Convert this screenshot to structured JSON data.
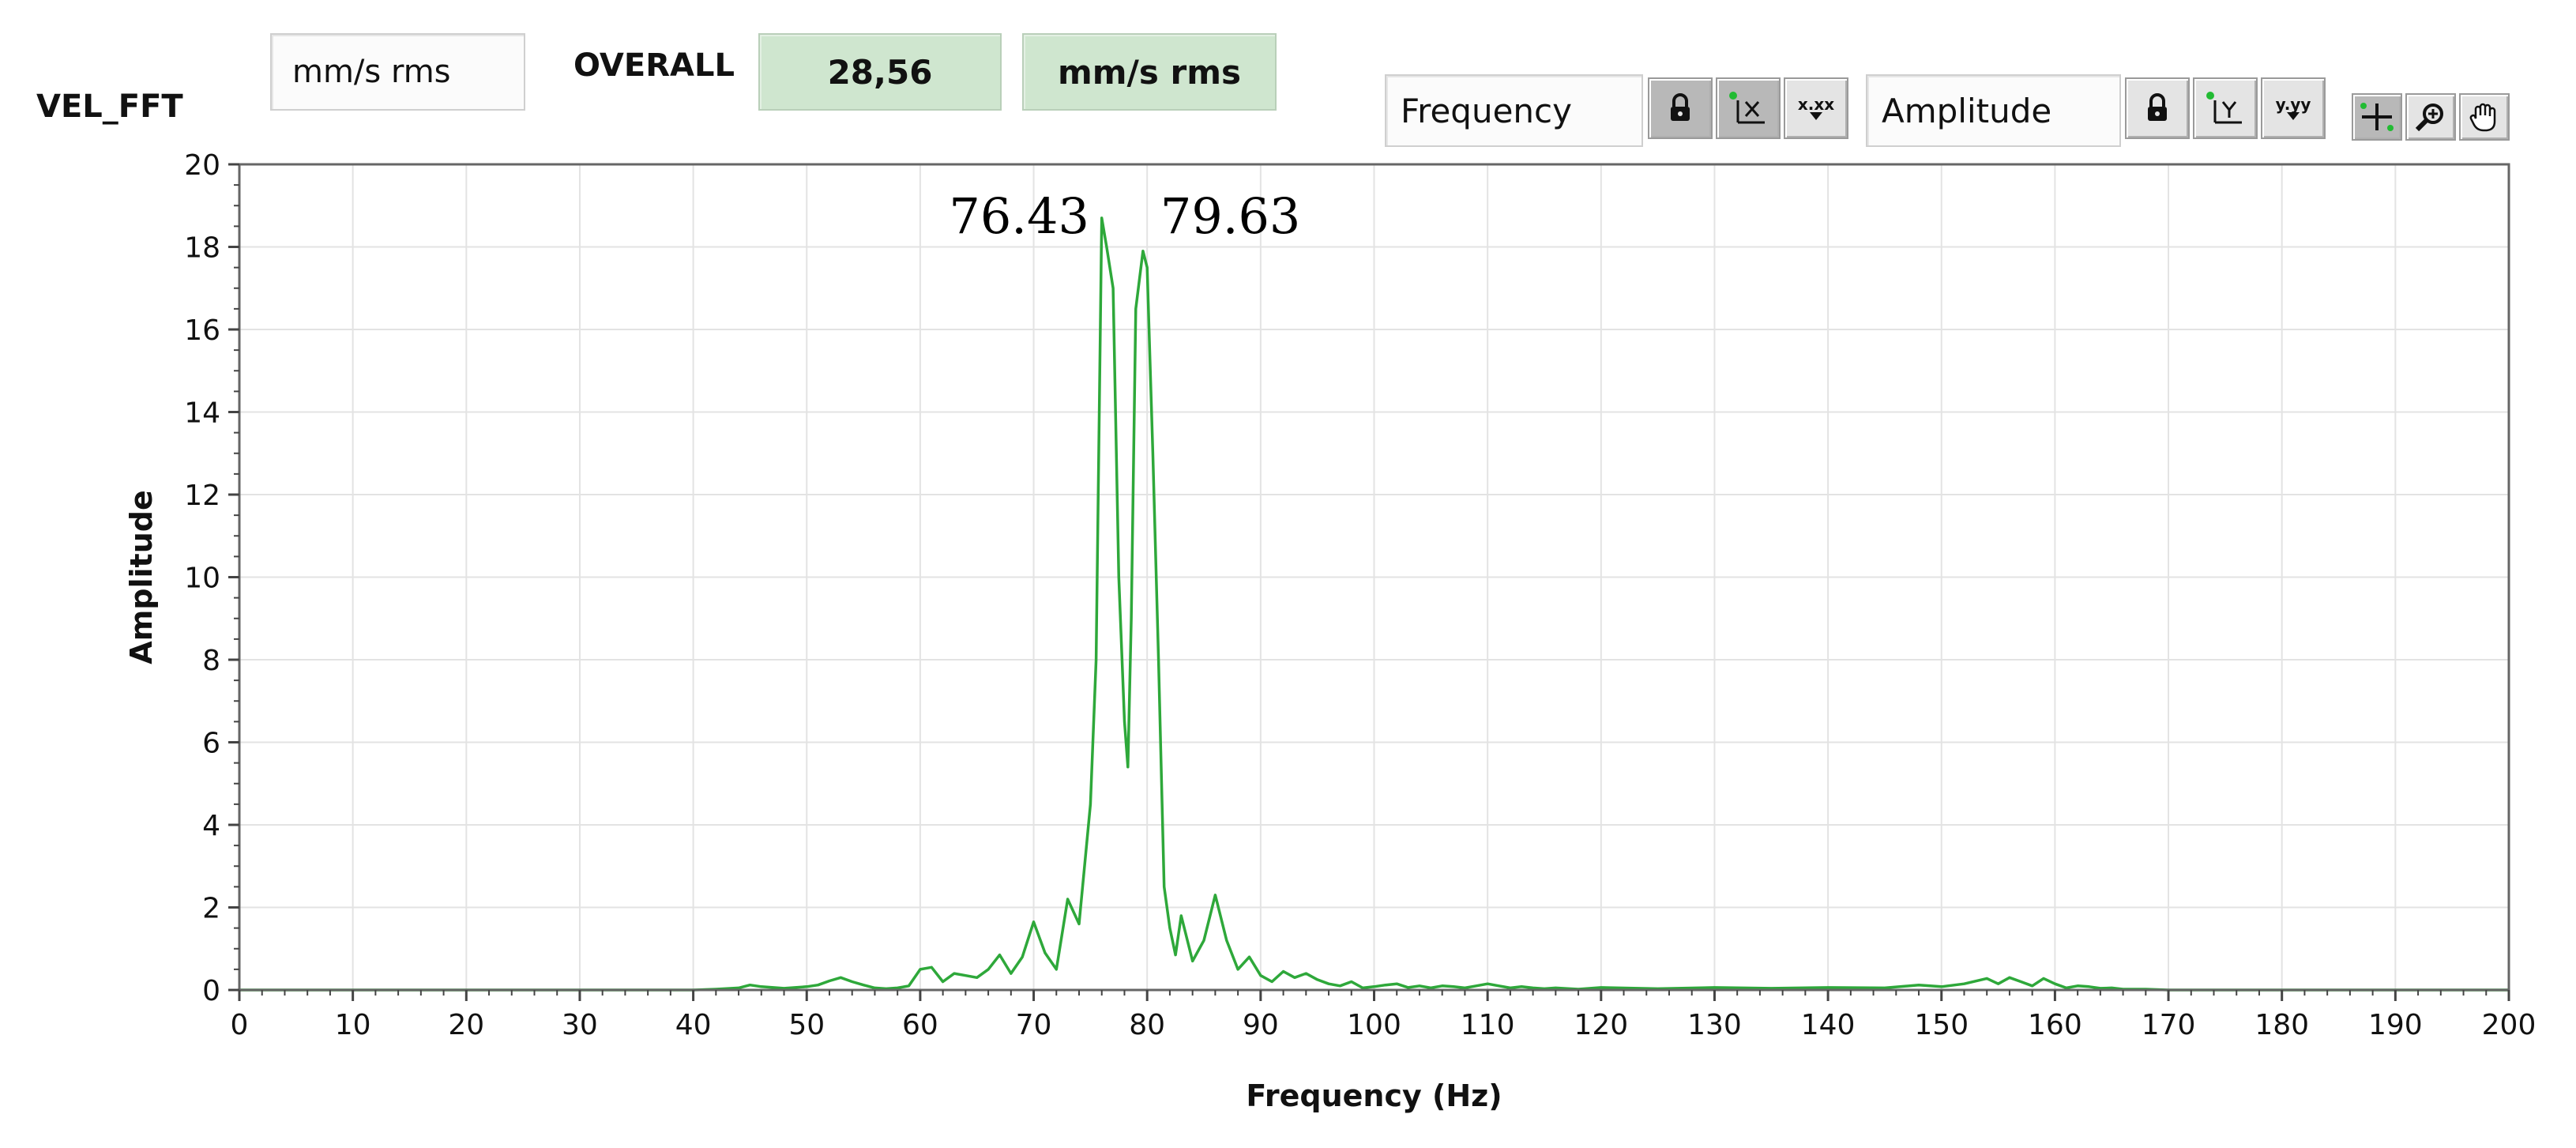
{
  "panel": {
    "graph_label": "VEL_FFT",
    "unit_display": "mm/s rms",
    "overall_label": "OVERALL",
    "overall_value": "28,56",
    "overall_unit": "mm/s rms"
  },
  "scale_legend": {
    "x_name": "Frequency",
    "y_name": "Amplitude",
    "x_format_glyph": "x.xx",
    "y_format_glyph": "y.yy"
  },
  "palette": {
    "trace_color": "#2ea83a",
    "grid_color": "#e3e3e3",
    "indicator_green": "#cfe6cf"
  },
  "icons": {
    "x_lock": "lock-icon",
    "y_lock": "lock-icon",
    "x_autoscale": "autoscale-x-icon",
    "y_autoscale": "autoscale-y-icon",
    "cursor_tool": "crosshair-icon",
    "zoom_tool": "zoom-icon",
    "pan_tool": "hand-icon"
  },
  "chart_data": {
    "type": "line",
    "title": "",
    "xlabel": "Frequency (Hz)",
    "ylabel": "Amplitude",
    "xlim": [
      0,
      200
    ],
    "ylim": [
      0,
      20
    ],
    "xticks": [
      0,
      10,
      20,
      30,
      40,
      50,
      60,
      70,
      80,
      90,
      100,
      110,
      120,
      130,
      140,
      150,
      160,
      170,
      180,
      190,
      200
    ],
    "yticks": [
      0,
      2,
      4,
      6,
      8,
      10,
      12,
      14,
      16,
      18,
      20
    ],
    "grid": true,
    "legend": "none",
    "annotations": [
      {
        "text": "76.43",
        "x": 76.43,
        "y": 18.6,
        "side": "left"
      },
      {
        "text": "79.63",
        "x": 79.63,
        "y": 18.6,
        "side": "right"
      }
    ],
    "series": [
      {
        "x": [
          0,
          5,
          10,
          20,
          30,
          40,
          42,
          44,
          45,
          46,
          48,
          50,
          51,
          52,
          53,
          54,
          55,
          56,
          57,
          58,
          59,
          60,
          61,
          62,
          63,
          64,
          65,
          66,
          67,
          68,
          69,
          70,
          71,
          72,
          73,
          74,
          75,
          75.5,
          76,
          76.43,
          77,
          77.5,
          78,
          78.3,
          78.6,
          79,
          79.63,
          80,
          80.5,
          81,
          81.5,
          82,
          82.5,
          83,
          84,
          85,
          86,
          87,
          88,
          89,
          90,
          91,
          92,
          93,
          94,
          95,
          96,
          97,
          98,
          99,
          100,
          101,
          102,
          103,
          104,
          105,
          106,
          107,
          108,
          109,
          110,
          111,
          112,
          113,
          114,
          115,
          116,
          118,
          120,
          125,
          130,
          135,
          140,
          145,
          148,
          150,
          152,
          154,
          155,
          156,
          157,
          158,
          159,
          160,
          161,
          162,
          163,
          164,
          165,
          166,
          168,
          170,
          180,
          190,
          200
        ],
        "y": [
          0,
          0,
          0,
          0,
          0,
          0,
          0.02,
          0.05,
          0.12,
          0.08,
          0.04,
          0.08,
          0.12,
          0.22,
          0.3,
          0.2,
          0.12,
          0.05,
          0.03,
          0.05,
          0.1,
          0.5,
          0.55,
          0.2,
          0.4,
          0.35,
          0.3,
          0.5,
          0.85,
          0.4,
          0.8,
          1.65,
          0.9,
          0.5,
          2.2,
          1.6,
          4.5,
          8,
          18.7,
          18,
          17,
          10,
          6.5,
          5.4,
          9,
          16.5,
          17.9,
          17.5,
          13,
          8,
          2.5,
          1.5,
          0.85,
          1.8,
          0.7,
          1.2,
          2.3,
          1.2,
          0.5,
          0.8,
          0.35,
          0.2,
          0.45,
          0.3,
          0.4,
          0.25,
          0.15,
          0.1,
          0.2,
          0.05,
          0.08,
          0.12,
          0.15,
          0.06,
          0.1,
          0.05,
          0.1,
          0.08,
          0.05,
          0.1,
          0.15,
          0.1,
          0.05,
          0.08,
          0.05,
          0.03,
          0.05,
          0.02,
          0.06,
          0.03,
          0.06,
          0.04,
          0.06,
          0.05,
          0.12,
          0.08,
          0.15,
          0.28,
          0.15,
          0.3,
          0.2,
          0.1,
          0.28,
          0.15,
          0.05,
          0.1,
          0.08,
          0.04,
          0.05,
          0.02,
          0.02,
          0,
          0,
          0,
          0
        ]
      }
    ]
  }
}
